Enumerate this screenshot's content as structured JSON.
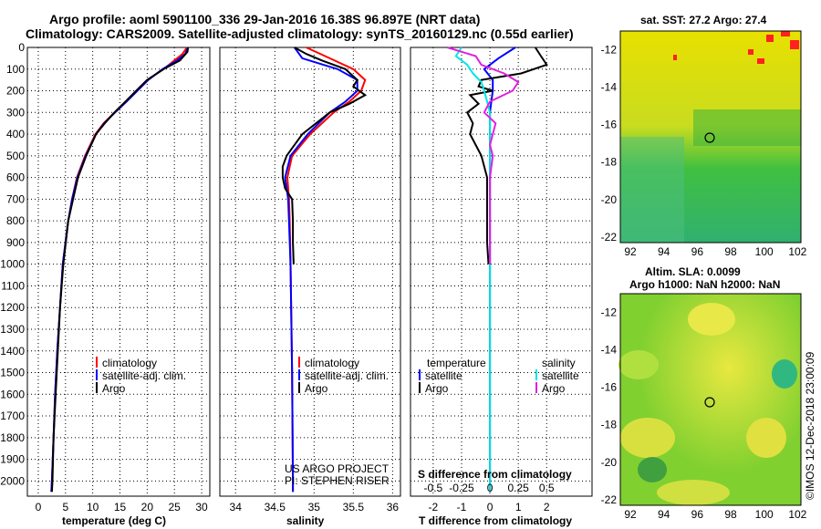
{
  "title": {
    "line1": "Argo profile: aoml 5901100_336 29-Jan-2016 16.38S 96.897E (NRT data)",
    "line2": "Climatology: CARS2009. Satellite-adjusted climatology: synTS_20160129.nc (0.55d earlier)"
  },
  "colors": {
    "climatology": "#ff0000",
    "satellite": "#0000ff",
    "argo": "#000000",
    "sal_sat": "#00e5e5",
    "sal_argo": "#e020e0"
  },
  "y_ticks": [
    "0",
    "100",
    "200",
    "300",
    "400",
    "500",
    "600",
    "700",
    "800",
    "900",
    "1000",
    "1100",
    "1200",
    "1300",
    "1400",
    "1500",
    "1600",
    "1700",
    "1800",
    "1900",
    "2000"
  ],
  "legend": {
    "climatology": "climatology",
    "satellite_adj": "satellite-adj. clim.",
    "argo": "Argo",
    "temperature": "temperature",
    "salinity": "salinity",
    "satellite": "satellite"
  },
  "credit": {
    "line1": "US ARGO PROJECT",
    "line2": "PI: STEPHEN RISER"
  },
  "diff": {
    "s_label": "S difference from climatology"
  },
  "maps": {
    "sst_title": "sat. SST: 27.2 Argo: 27.4",
    "sla_title1": "Altim. SLA: 0.0099",
    "sla_title2": "Argo h1000: NaN h2000: NaN",
    "y_ticks": [
      "-12",
      "-14",
      "-16",
      "-18",
      "-20",
      "-22"
    ],
    "x_ticks": [
      "92",
      "94",
      "96",
      "98",
      "100",
      "102"
    ],
    "imos": "©IMOS 12-Dec-2018 23:00:09"
  },
  "chart_data": [
    {
      "type": "line",
      "xlabel": "temperature (deg C)",
      "x_ticks": [
        "0",
        "5",
        "10",
        "15",
        "20",
        "25",
        "30"
      ],
      "xlim": [
        -2,
        31.5
      ],
      "ylim": [
        2070,
        0
      ],
      "series": [
        {
          "name": "climatology",
          "depth": [
            0,
            30,
            60,
            100,
            150,
            200,
            250,
            300,
            350,
            400,
            500,
            600,
            700,
            800,
            1000,
            1200,
            1400,
            1600,
            1800,
            2000,
            2050
          ],
          "values": [
            27.3,
            26.5,
            25,
            23,
            20,
            18,
            16,
            14,
            12,
            10.5,
            8.6,
            7.1,
            6.2,
            5.5,
            4.5,
            4,
            3.5,
            3.1,
            2.8,
            2.5,
            2.4
          ]
        },
        {
          "name": "satellite-adj. clim.",
          "depth": [
            0,
            30,
            60,
            100,
            150,
            200,
            250,
            300,
            350,
            400,
            500,
            600,
            700,
            800,
            1000,
            1200,
            1400,
            1600,
            1800,
            2000,
            2050
          ],
          "values": [
            27.5,
            27,
            25.5,
            22.8,
            20.2,
            18.2,
            16.2,
            14.1,
            12.1,
            10.6,
            8.7,
            7.2,
            6.2,
            5.5,
            4.5,
            4,
            3.5,
            3.1,
            2.8,
            2.5,
            2.4
          ]
        },
        {
          "name": "Argo",
          "depth": [
            0,
            20,
            60,
            100,
            150,
            200,
            250,
            300,
            350,
            400,
            500,
            600,
            700,
            800,
            1000,
            1200,
            1400,
            1600,
            1800,
            2000,
            2050
          ],
          "values": [
            27.5,
            27.4,
            26,
            23,
            20,
            18,
            16,
            14,
            12.2,
            10.6,
            8.8,
            7.3,
            6.4,
            5.5,
            4.6,
            4,
            3.6,
            3.2,
            2.8,
            2.6,
            2.5
          ]
        }
      ]
    },
    {
      "type": "line",
      "xlabel": "salinity",
      "x_ticks": [
        "34",
        "34.5",
        "35",
        "35.5",
        "36"
      ],
      "xlim": [
        33.8,
        36.1
      ],
      "ylim": [
        2070,
        0
      ],
      "series": [
        {
          "name": "climatology",
          "depth": [
            0,
            50,
            100,
            150,
            200,
            250,
            300,
            400,
            500,
            600,
            650,
            700,
            800,
            1000,
            1500,
            2000,
            2050
          ],
          "values": [
            34.9,
            35.2,
            35.5,
            35.65,
            35.6,
            35.45,
            35.25,
            34.95,
            34.72,
            34.66,
            34.67,
            34.68,
            34.69,
            34.7,
            34.72,
            34.73,
            34.73
          ]
        },
        {
          "name": "satellite-adj. clim.",
          "depth": [
            0,
            50,
            100,
            150,
            200,
            250,
            300,
            400,
            500,
            600,
            650,
            700,
            800,
            1000,
            1500,
            2000,
            2050
          ],
          "values": [
            34.75,
            34.85,
            35.3,
            35.55,
            35.55,
            35.4,
            35.2,
            34.92,
            34.7,
            34.63,
            34.65,
            34.67,
            34.68,
            34.7,
            34.72,
            34.73,
            34.73
          ]
        },
        {
          "name": "Argo",
          "depth": [
            0,
            30,
            60,
            100,
            150,
            180,
            220,
            260,
            300,
            400,
            500,
            550,
            600,
            650,
            700,
            800,
            900,
            1000
          ],
          "values": [
            34.75,
            34.9,
            35.1,
            35.4,
            35.55,
            35.5,
            35.65,
            35.45,
            35.2,
            34.85,
            34.65,
            34.6,
            34.6,
            34.63,
            34.72,
            34.73,
            34.73,
            34.74
          ]
        }
      ]
    },
    {
      "type": "line",
      "xlabel": "T difference from climatology",
      "x_ticks": [
        "-2",
        "-1",
        "0",
        "1",
        "2"
      ],
      "s_ticks": [
        "-0.5",
        "-0.25",
        "0",
        "0.25",
        "0.5"
      ],
      "xlim": [
        -2.8,
        3.6
      ],
      "ylim": [
        2070,
        0
      ],
      "series": [
        {
          "name": "temperature satellite",
          "depth": [
            0,
            50,
            100,
            150,
            200,
            250,
            300,
            400,
            500,
            600,
            700,
            800,
            1000,
            1500,
            2000,
            2050
          ],
          "values": [
            0.9,
            0.3,
            -0.2,
            0.1,
            0.1,
            0.05,
            0,
            0,
            0,
            0,
            0,
            0,
            0,
            0,
            0,
            0
          ]
        },
        {
          "name": "temperature Argo",
          "depth": [
            0,
            40,
            80,
            120,
            150,
            180,
            200,
            220,
            260,
            300,
            350,
            400,
            500,
            600,
            700,
            800,
            900,
            1000
          ],
          "values": [
            1.6,
            1.8,
            2.0,
            1.1,
            -0.3,
            -0.4,
            0.1,
            -0.7,
            -0.4,
            -0.8,
            -0.6,
            -0.7,
            -0.3,
            -0.1,
            -0.1,
            -0.1,
            -0.1,
            -0.05
          ]
        },
        {
          "name": "salinity satellite",
          "depth": [
            0,
            40,
            80,
            120,
            160,
            200,
            250,
            300,
            400,
            500,
            1000,
            1500,
            2000,
            2050
          ],
          "values": [
            -1,
            -1.2,
            -0.8,
            -0.6,
            -0.3,
            -0.2,
            -0.1,
            0,
            0,
            0,
            0,
            0,
            0,
            0
          ]
        },
        {
          "name": "salinity Argo",
          "depth": [
            0,
            40,
            80,
            120,
            160,
            200,
            250,
            300,
            350,
            400,
            450,
            500,
            600,
            700,
            800,
            1000
          ],
          "values": [
            -1.5,
            -0.5,
            -0.3,
            0.5,
            1.0,
            0.8,
            0,
            -0.2,
            0.2,
            0.1,
            0,
            0.1,
            0,
            0,
            0,
            0
          ]
        }
      ]
    }
  ]
}
